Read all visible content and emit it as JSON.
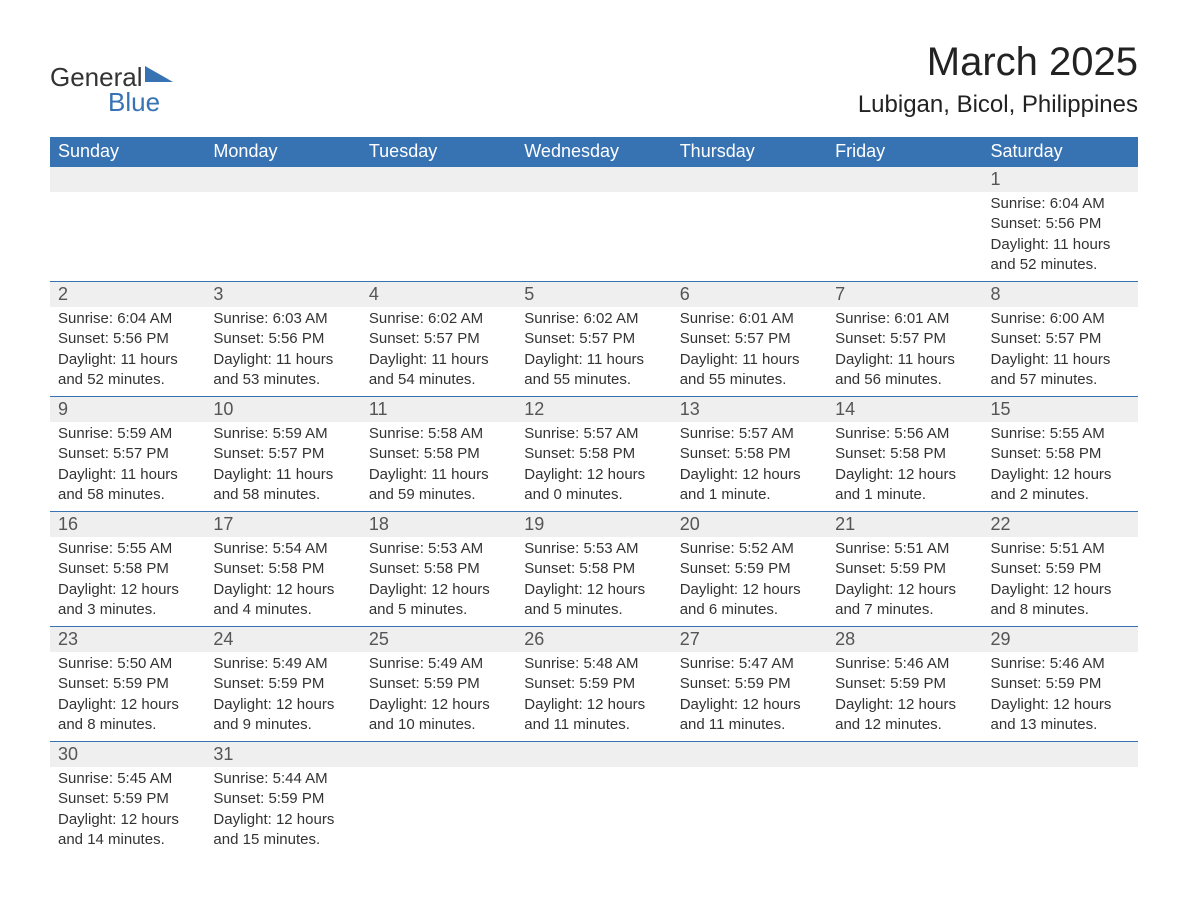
{
  "brand": {
    "line1": "General",
    "line2": "Blue",
    "accent": "#3773b3"
  },
  "title": "March 2025",
  "location": "Lubigan, Bicol, Philippines",
  "weekdays": [
    "Sunday",
    "Monday",
    "Tuesday",
    "Wednesday",
    "Thursday",
    "Friday",
    "Saturday"
  ],
  "colors": {
    "header_bg": "#3773b3",
    "header_text": "#ffffff",
    "daynum_bg": "#efefef",
    "row_divider": "#3773b3",
    "text": "#333333",
    "background": "#ffffff"
  },
  "typography": {
    "title_fontsize": 40,
    "location_fontsize": 24,
    "weekday_fontsize": 18,
    "daynum_fontsize": 18,
    "cell_fontsize": 15
  },
  "layout": {
    "columns": 7,
    "start_weekday_index": 6
  },
  "weeks": [
    [
      null,
      null,
      null,
      null,
      null,
      null,
      {
        "n": "1",
        "sunrise": "Sunrise: 6:04 AM",
        "sunset": "Sunset: 5:56 PM",
        "daylight": "Daylight: 11 hours and 52 minutes."
      }
    ],
    [
      {
        "n": "2",
        "sunrise": "Sunrise: 6:04 AM",
        "sunset": "Sunset: 5:56 PM",
        "daylight": "Daylight: 11 hours and 52 minutes."
      },
      {
        "n": "3",
        "sunrise": "Sunrise: 6:03 AM",
        "sunset": "Sunset: 5:56 PM",
        "daylight": "Daylight: 11 hours and 53 minutes."
      },
      {
        "n": "4",
        "sunrise": "Sunrise: 6:02 AM",
        "sunset": "Sunset: 5:57 PM",
        "daylight": "Daylight: 11 hours and 54 minutes."
      },
      {
        "n": "5",
        "sunrise": "Sunrise: 6:02 AM",
        "sunset": "Sunset: 5:57 PM",
        "daylight": "Daylight: 11 hours and 55 minutes."
      },
      {
        "n": "6",
        "sunrise": "Sunrise: 6:01 AM",
        "sunset": "Sunset: 5:57 PM",
        "daylight": "Daylight: 11 hours and 55 minutes."
      },
      {
        "n": "7",
        "sunrise": "Sunrise: 6:01 AM",
        "sunset": "Sunset: 5:57 PM",
        "daylight": "Daylight: 11 hours and 56 minutes."
      },
      {
        "n": "8",
        "sunrise": "Sunrise: 6:00 AM",
        "sunset": "Sunset: 5:57 PM",
        "daylight": "Daylight: 11 hours and 57 minutes."
      }
    ],
    [
      {
        "n": "9",
        "sunrise": "Sunrise: 5:59 AM",
        "sunset": "Sunset: 5:57 PM",
        "daylight": "Daylight: 11 hours and 58 minutes."
      },
      {
        "n": "10",
        "sunrise": "Sunrise: 5:59 AM",
        "sunset": "Sunset: 5:57 PM",
        "daylight": "Daylight: 11 hours and 58 minutes."
      },
      {
        "n": "11",
        "sunrise": "Sunrise: 5:58 AM",
        "sunset": "Sunset: 5:58 PM",
        "daylight": "Daylight: 11 hours and 59 minutes."
      },
      {
        "n": "12",
        "sunrise": "Sunrise: 5:57 AM",
        "sunset": "Sunset: 5:58 PM",
        "daylight": "Daylight: 12 hours and 0 minutes."
      },
      {
        "n": "13",
        "sunrise": "Sunrise: 5:57 AM",
        "sunset": "Sunset: 5:58 PM",
        "daylight": "Daylight: 12 hours and 1 minute."
      },
      {
        "n": "14",
        "sunrise": "Sunrise: 5:56 AM",
        "sunset": "Sunset: 5:58 PM",
        "daylight": "Daylight: 12 hours and 1 minute."
      },
      {
        "n": "15",
        "sunrise": "Sunrise: 5:55 AM",
        "sunset": "Sunset: 5:58 PM",
        "daylight": "Daylight: 12 hours and 2 minutes."
      }
    ],
    [
      {
        "n": "16",
        "sunrise": "Sunrise: 5:55 AM",
        "sunset": "Sunset: 5:58 PM",
        "daylight": "Daylight: 12 hours and 3 minutes."
      },
      {
        "n": "17",
        "sunrise": "Sunrise: 5:54 AM",
        "sunset": "Sunset: 5:58 PM",
        "daylight": "Daylight: 12 hours and 4 minutes."
      },
      {
        "n": "18",
        "sunrise": "Sunrise: 5:53 AM",
        "sunset": "Sunset: 5:58 PM",
        "daylight": "Daylight: 12 hours and 5 minutes."
      },
      {
        "n": "19",
        "sunrise": "Sunrise: 5:53 AM",
        "sunset": "Sunset: 5:58 PM",
        "daylight": "Daylight: 12 hours and 5 minutes."
      },
      {
        "n": "20",
        "sunrise": "Sunrise: 5:52 AM",
        "sunset": "Sunset: 5:59 PM",
        "daylight": "Daylight: 12 hours and 6 minutes."
      },
      {
        "n": "21",
        "sunrise": "Sunrise: 5:51 AM",
        "sunset": "Sunset: 5:59 PM",
        "daylight": "Daylight: 12 hours and 7 minutes."
      },
      {
        "n": "22",
        "sunrise": "Sunrise: 5:51 AM",
        "sunset": "Sunset: 5:59 PM",
        "daylight": "Daylight: 12 hours and 8 minutes."
      }
    ],
    [
      {
        "n": "23",
        "sunrise": "Sunrise: 5:50 AM",
        "sunset": "Sunset: 5:59 PM",
        "daylight": "Daylight: 12 hours and 8 minutes."
      },
      {
        "n": "24",
        "sunrise": "Sunrise: 5:49 AM",
        "sunset": "Sunset: 5:59 PM",
        "daylight": "Daylight: 12 hours and 9 minutes."
      },
      {
        "n": "25",
        "sunrise": "Sunrise: 5:49 AM",
        "sunset": "Sunset: 5:59 PM",
        "daylight": "Daylight: 12 hours and 10 minutes."
      },
      {
        "n": "26",
        "sunrise": "Sunrise: 5:48 AM",
        "sunset": "Sunset: 5:59 PM",
        "daylight": "Daylight: 12 hours and 11 minutes."
      },
      {
        "n": "27",
        "sunrise": "Sunrise: 5:47 AM",
        "sunset": "Sunset: 5:59 PM",
        "daylight": "Daylight: 12 hours and 11 minutes."
      },
      {
        "n": "28",
        "sunrise": "Sunrise: 5:46 AM",
        "sunset": "Sunset: 5:59 PM",
        "daylight": "Daylight: 12 hours and 12 minutes."
      },
      {
        "n": "29",
        "sunrise": "Sunrise: 5:46 AM",
        "sunset": "Sunset: 5:59 PM",
        "daylight": "Daylight: 12 hours and 13 minutes."
      }
    ],
    [
      {
        "n": "30",
        "sunrise": "Sunrise: 5:45 AM",
        "sunset": "Sunset: 5:59 PM",
        "daylight": "Daylight: 12 hours and 14 minutes."
      },
      {
        "n": "31",
        "sunrise": "Sunrise: 5:44 AM",
        "sunset": "Sunset: 5:59 PM",
        "daylight": "Daylight: 12 hours and 15 minutes."
      },
      null,
      null,
      null,
      null,
      null
    ]
  ]
}
